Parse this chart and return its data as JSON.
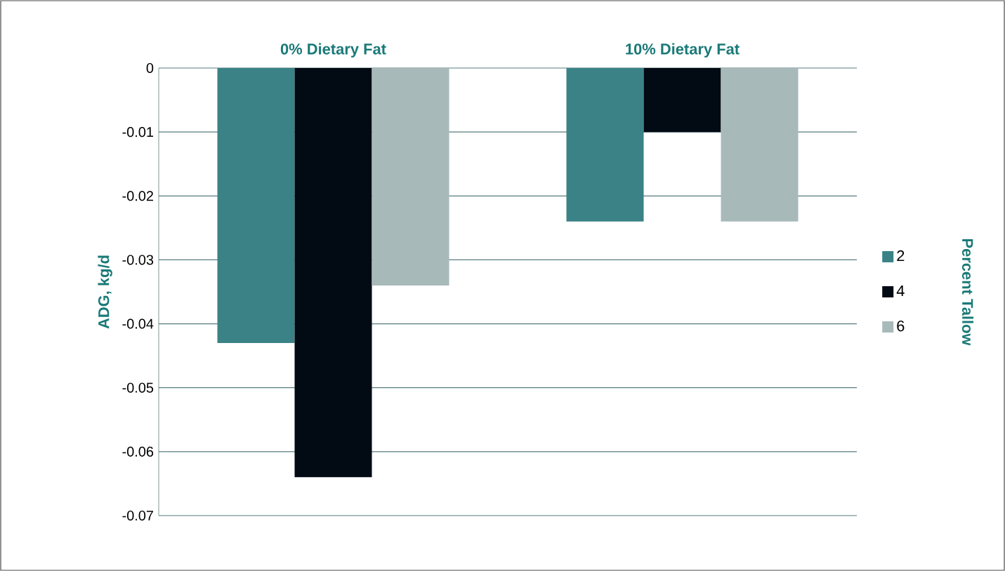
{
  "chart_data": {
    "type": "bar",
    "categories": [
      "0% Dietary Fat",
      "10% Dietary Fat"
    ],
    "ylabel": "ADG, kg/d",
    "legend_title": "Percent Tallow",
    "series": [
      {
        "name": "2",
        "color": "#3a8286",
        "values": [
          -0.043,
          -0.024
        ]
      },
      {
        "name": "4",
        "color": "#020a14",
        "values": [
          -0.064,
          -0.01
        ]
      },
      {
        "name": "6",
        "color": "#a8b9ba",
        "values": [
          -0.034,
          -0.024
        ]
      }
    ],
    "ylim": [
      -0.07,
      0
    ],
    "yticks": [
      0,
      -0.01,
      -0.02,
      -0.03,
      -0.04,
      -0.05,
      -0.06,
      -0.07
    ],
    "grid": "y",
    "legend": "right"
  }
}
